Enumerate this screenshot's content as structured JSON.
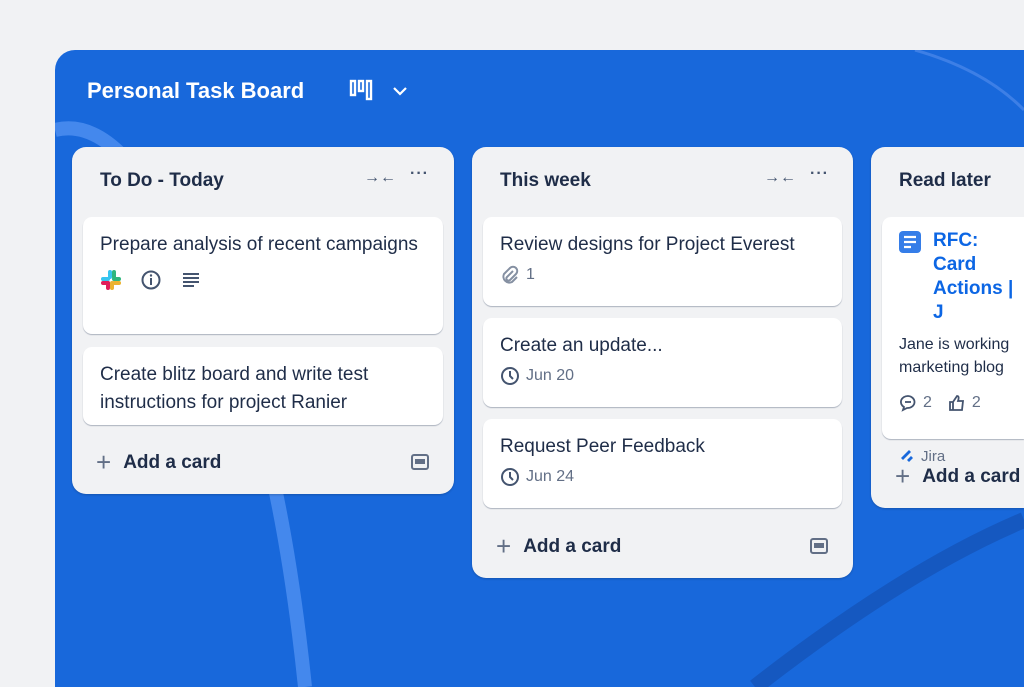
{
  "board": {
    "title": "Personal Task Board",
    "accent": "#1868db"
  },
  "columns": [
    {
      "title": "To Do - Today",
      "add_label": "Add a card",
      "cards": [
        {
          "title": "Prepare analysis of recent campaigns",
          "icons": [
            "slack-icon",
            "info-icon",
            "description-icon"
          ]
        },
        {
          "title": "Create blitz board and write test instructions for project Ranier"
        }
      ]
    },
    {
      "title": "This week",
      "add_label": "Add a card",
      "cards": [
        {
          "title": "Review designs for Project Everest",
          "attachments": "1"
        },
        {
          "title": "Create an update...",
          "due": "Jun 20"
        },
        {
          "title": "Request Peer Feedback",
          "due": "Jun 24"
        }
      ]
    },
    {
      "title": "Read later",
      "add_label": "Add a card",
      "cards": [
        {
          "title": "RFC: Card Actions | J",
          "description": "Jane is working marketing blog",
          "comments": "2",
          "likes": "2",
          "source": "Jira"
        }
      ]
    }
  ]
}
